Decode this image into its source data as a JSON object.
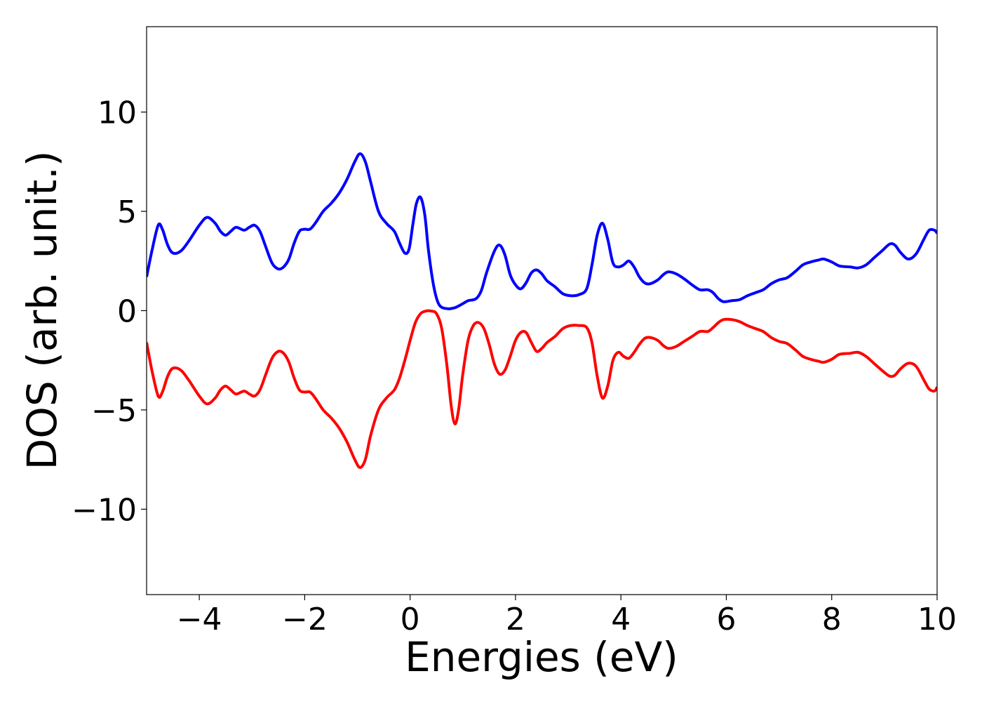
{
  "chart_data": {
    "type": "line",
    "xlabel": "Energies (eV)",
    "ylabel": "DOS (arb. unit.)",
    "xlim": [
      -5,
      10
    ],
    "ylim": [
      -14.3,
      14.3
    ],
    "grid": false,
    "x_ticks": [
      -4,
      -2,
      0,
      2,
      4,
      6,
      8,
      10
    ],
    "x_tick_labels": [
      "−4",
      "−2",
      "0",
      "2",
      "4",
      "6",
      "8",
      "10"
    ],
    "y_ticks": [
      -10,
      -5,
      0,
      5,
      10
    ],
    "y_tick_labels": [
      "−10",
      "−5",
      "0",
      "5",
      "10"
    ],
    "series": [
      {
        "color": "#0000ff",
        "points": [
          [
            -5.0,
            1.7
          ],
          [
            -4.9,
            3.0
          ],
          [
            -4.78,
            4.3
          ],
          [
            -4.7,
            4.1
          ],
          [
            -4.6,
            3.3
          ],
          [
            -4.5,
            2.9
          ],
          [
            -4.35,
            3.0
          ],
          [
            -4.2,
            3.5
          ],
          [
            -4.0,
            4.3
          ],
          [
            -3.85,
            4.7
          ],
          [
            -3.7,
            4.4
          ],
          [
            -3.6,
            4.0
          ],
          [
            -3.5,
            3.8
          ],
          [
            -3.4,
            4.0
          ],
          [
            -3.3,
            4.2
          ],
          [
            -3.15,
            4.05
          ],
          [
            -3.05,
            4.2
          ],
          [
            -2.95,
            4.3
          ],
          [
            -2.85,
            4.0
          ],
          [
            -2.75,
            3.3
          ],
          [
            -2.62,
            2.4
          ],
          [
            -2.5,
            2.1
          ],
          [
            -2.4,
            2.2
          ],
          [
            -2.3,
            2.6
          ],
          [
            -2.2,
            3.4
          ],
          [
            -2.1,
            4.0
          ],
          [
            -2.0,
            4.1
          ],
          [
            -1.9,
            4.1
          ],
          [
            -1.8,
            4.4
          ],
          [
            -1.65,
            5.0
          ],
          [
            -1.5,
            5.4
          ],
          [
            -1.35,
            5.9
          ],
          [
            -1.2,
            6.6
          ],
          [
            -1.05,
            7.5
          ],
          [
            -0.95,
            7.9
          ],
          [
            -0.85,
            7.5
          ],
          [
            -0.75,
            6.5
          ],
          [
            -0.6,
            5.0
          ],
          [
            -0.45,
            4.4
          ],
          [
            -0.3,
            4.0
          ],
          [
            -0.2,
            3.4
          ],
          [
            -0.1,
            2.9
          ],
          [
            -0.02,
            3.1
          ],
          [
            0.05,
            4.3
          ],
          [
            0.12,
            5.4
          ],
          [
            0.2,
            5.7
          ],
          [
            0.28,
            4.8
          ],
          [
            0.35,
            3.0
          ],
          [
            0.45,
            1.2
          ],
          [
            0.55,
            0.3
          ],
          [
            0.7,
            0.1
          ],
          [
            0.85,
            0.15
          ],
          [
            1.0,
            0.35
          ],
          [
            1.1,
            0.5
          ],
          [
            1.25,
            0.6
          ],
          [
            1.35,
            1.0
          ],
          [
            1.45,
            1.9
          ],
          [
            1.6,
            3.0
          ],
          [
            1.7,
            3.3
          ],
          [
            1.8,
            2.8
          ],
          [
            1.9,
            1.8
          ],
          [
            2.0,
            1.3
          ],
          [
            2.1,
            1.1
          ],
          [
            2.2,
            1.4
          ],
          [
            2.3,
            1.9
          ],
          [
            2.4,
            2.05
          ],
          [
            2.5,
            1.85
          ],
          [
            2.6,
            1.5
          ],
          [
            2.75,
            1.2
          ],
          [
            2.9,
            0.85
          ],
          [
            3.05,
            0.75
          ],
          [
            3.2,
            0.8
          ],
          [
            3.35,
            1.1
          ],
          [
            3.45,
            2.3
          ],
          [
            3.55,
            3.8
          ],
          [
            3.65,
            4.4
          ],
          [
            3.75,
            3.6
          ],
          [
            3.85,
            2.4
          ],
          [
            3.95,
            2.2
          ],
          [
            4.05,
            2.3
          ],
          [
            4.15,
            2.5
          ],
          [
            4.25,
            2.2
          ],
          [
            4.35,
            1.7
          ],
          [
            4.45,
            1.4
          ],
          [
            4.55,
            1.35
          ],
          [
            4.7,
            1.55
          ],
          [
            4.8,
            1.8
          ],
          [
            4.9,
            1.95
          ],
          [
            5.05,
            1.85
          ],
          [
            5.2,
            1.6
          ],
          [
            5.35,
            1.3
          ],
          [
            5.5,
            1.05
          ],
          [
            5.65,
            1.05
          ],
          [
            5.75,
            0.9
          ],
          [
            5.85,
            0.6
          ],
          [
            5.95,
            0.45
          ],
          [
            6.1,
            0.5
          ],
          [
            6.25,
            0.55
          ],
          [
            6.4,
            0.75
          ],
          [
            6.55,
            0.9
          ],
          [
            6.7,
            1.05
          ],
          [
            6.85,
            1.35
          ],
          [
            7.0,
            1.55
          ],
          [
            7.15,
            1.65
          ],
          [
            7.3,
            1.95
          ],
          [
            7.45,
            2.3
          ],
          [
            7.6,
            2.45
          ],
          [
            7.75,
            2.55
          ],
          [
            7.85,
            2.6
          ],
          [
            8.0,
            2.45
          ],
          [
            8.15,
            2.25
          ],
          [
            8.35,
            2.2
          ],
          [
            8.5,
            2.15
          ],
          [
            8.65,
            2.3
          ],
          [
            8.8,
            2.65
          ],
          [
            8.95,
            3.0
          ],
          [
            9.1,
            3.35
          ],
          [
            9.2,
            3.3
          ],
          [
            9.3,
            2.95
          ],
          [
            9.45,
            2.6
          ],
          [
            9.6,
            2.85
          ],
          [
            9.75,
            3.6
          ],
          [
            9.85,
            4.05
          ],
          [
            9.95,
            4.05
          ],
          [
            10.0,
            3.9
          ]
        ]
      },
      {
        "color": "#ff0000",
        "points": [
          [
            -5.0,
            -1.6
          ],
          [
            -4.9,
            -3.0
          ],
          [
            -4.78,
            -4.3
          ],
          [
            -4.7,
            -4.1
          ],
          [
            -4.6,
            -3.3
          ],
          [
            -4.5,
            -2.9
          ],
          [
            -4.35,
            -3.0
          ],
          [
            -4.2,
            -3.5
          ],
          [
            -4.0,
            -4.3
          ],
          [
            -3.85,
            -4.7
          ],
          [
            -3.7,
            -4.4
          ],
          [
            -3.6,
            -4.0
          ],
          [
            -3.5,
            -3.8
          ],
          [
            -3.4,
            -4.0
          ],
          [
            -3.3,
            -4.2
          ],
          [
            -3.15,
            -4.05
          ],
          [
            -3.05,
            -4.2
          ],
          [
            -2.95,
            -4.3
          ],
          [
            -2.85,
            -4.0
          ],
          [
            -2.75,
            -3.3
          ],
          [
            -2.62,
            -2.4
          ],
          [
            -2.5,
            -2.05
          ],
          [
            -2.4,
            -2.15
          ],
          [
            -2.3,
            -2.6
          ],
          [
            -2.2,
            -3.4
          ],
          [
            -2.1,
            -4.0
          ],
          [
            -2.0,
            -4.1
          ],
          [
            -1.9,
            -4.1
          ],
          [
            -1.8,
            -4.4
          ],
          [
            -1.65,
            -5.0
          ],
          [
            -1.5,
            -5.4
          ],
          [
            -1.35,
            -5.9
          ],
          [
            -1.2,
            -6.6
          ],
          [
            -1.05,
            -7.5
          ],
          [
            -0.95,
            -7.9
          ],
          [
            -0.85,
            -7.5
          ],
          [
            -0.75,
            -6.3
          ],
          [
            -0.6,
            -5.0
          ],
          [
            -0.45,
            -4.4
          ],
          [
            -0.3,
            -4.0
          ],
          [
            -0.2,
            -3.4
          ],
          [
            -0.1,
            -2.5
          ],
          [
            0.0,
            -1.5
          ],
          [
            0.1,
            -0.6
          ],
          [
            0.2,
            -0.15
          ],
          [
            0.3,
            -0.02
          ],
          [
            0.4,
            -0.02
          ],
          [
            0.5,
            -0.15
          ],
          [
            0.6,
            -0.9
          ],
          [
            0.7,
            -2.8
          ],
          [
            0.78,
            -4.8
          ],
          [
            0.85,
            -5.7
          ],
          [
            0.92,
            -5.0
          ],
          [
            1.0,
            -3.2
          ],
          [
            1.1,
            -1.5
          ],
          [
            1.2,
            -0.75
          ],
          [
            1.3,
            -0.6
          ],
          [
            1.4,
            -0.9
          ],
          [
            1.5,
            -1.7
          ],
          [
            1.6,
            -2.7
          ],
          [
            1.7,
            -3.2
          ],
          [
            1.8,
            -3.0
          ],
          [
            1.9,
            -2.3
          ],
          [
            2.0,
            -1.5
          ],
          [
            2.1,
            -1.1
          ],
          [
            2.2,
            -1.1
          ],
          [
            2.3,
            -1.6
          ],
          [
            2.4,
            -2.05
          ],
          [
            2.5,
            -1.9
          ],
          [
            2.6,
            -1.6
          ],
          [
            2.75,
            -1.3
          ],
          [
            2.9,
            -0.9
          ],
          [
            3.05,
            -0.75
          ],
          [
            3.2,
            -0.75
          ],
          [
            3.35,
            -0.85
          ],
          [
            3.45,
            -1.6
          ],
          [
            3.55,
            -3.3
          ],
          [
            3.65,
            -4.4
          ],
          [
            3.75,
            -3.8
          ],
          [
            3.85,
            -2.5
          ],
          [
            3.95,
            -2.1
          ],
          [
            4.05,
            -2.3
          ],
          [
            4.15,
            -2.4
          ],
          [
            4.25,
            -2.1
          ],
          [
            4.35,
            -1.7
          ],
          [
            4.45,
            -1.4
          ],
          [
            4.55,
            -1.35
          ],
          [
            4.7,
            -1.5
          ],
          [
            4.8,
            -1.75
          ],
          [
            4.9,
            -1.9
          ],
          [
            5.05,
            -1.8
          ],
          [
            5.2,
            -1.55
          ],
          [
            5.35,
            -1.3
          ],
          [
            5.5,
            -1.05
          ],
          [
            5.65,
            -1.05
          ],
          [
            5.75,
            -0.85
          ],
          [
            5.85,
            -0.6
          ],
          [
            5.95,
            -0.45
          ],
          [
            6.1,
            -0.45
          ],
          [
            6.25,
            -0.55
          ],
          [
            6.4,
            -0.75
          ],
          [
            6.55,
            -0.9
          ],
          [
            6.7,
            -1.05
          ],
          [
            6.85,
            -1.35
          ],
          [
            7.0,
            -1.55
          ],
          [
            7.15,
            -1.65
          ],
          [
            7.3,
            -1.95
          ],
          [
            7.45,
            -2.3
          ],
          [
            7.6,
            -2.45
          ],
          [
            7.75,
            -2.55
          ],
          [
            7.85,
            -2.6
          ],
          [
            8.0,
            -2.45
          ],
          [
            8.15,
            -2.2
          ],
          [
            8.35,
            -2.15
          ],
          [
            8.5,
            -2.1
          ],
          [
            8.65,
            -2.3
          ],
          [
            8.8,
            -2.65
          ],
          [
            8.95,
            -3.0
          ],
          [
            9.1,
            -3.3
          ],
          [
            9.2,
            -3.25
          ],
          [
            9.3,
            -2.95
          ],
          [
            9.45,
            -2.65
          ],
          [
            9.6,
            -2.8
          ],
          [
            9.75,
            -3.5
          ],
          [
            9.85,
            -3.95
          ],
          [
            9.95,
            -4.05
          ],
          [
            10.0,
            -3.85
          ]
        ]
      }
    ]
  }
}
